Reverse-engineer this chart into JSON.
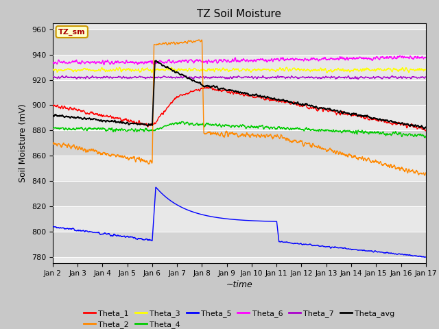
{
  "title": "TZ Soil Moisture",
  "ylabel": "Soil Moisture (mV)",
  "xlabel": "~time",
  "annotation": "TZ_sm",
  "ylim": [
    775,
    965
  ],
  "yticks": [
    780,
    800,
    820,
    840,
    860,
    880,
    900,
    920,
    940,
    960
  ],
  "xtick_labels": [
    "Jan 2",
    "Jan 3",
    "Jan 4",
    "Jan 5",
    "Jan 6",
    "Jan 7",
    "Jan 8",
    "Jan 9",
    "Jan 10",
    "Jan 11",
    "Jan 12",
    "Jan 13",
    "Jan 14",
    "Jan 15",
    "Jan 16",
    "Jan 17"
  ],
  "colors": {
    "Theta_1": "#ff0000",
    "Theta_2": "#ff8800",
    "Theta_3": "#ffff00",
    "Theta_4": "#00cc00",
    "Theta_5": "#0000ff",
    "Theta_6": "#ff00ff",
    "Theta_7": "#aa00cc",
    "Theta_avg": "#000000"
  },
  "legend_box_color": "#ffffcc",
  "legend_box_edge": "#cc9900",
  "fig_bg": "#c8c8c8",
  "plot_bg": "#e8e8e8",
  "band_color": "#d4d4d4"
}
